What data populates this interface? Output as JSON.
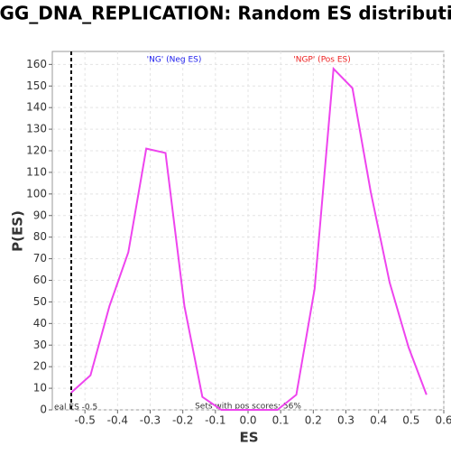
{
  "chart_data": {
    "type": "line",
    "title": "KEGG_DNA_REPLICATION: Random ES distribution",
    "x_label": "ES",
    "y_label": "P(ES)",
    "x": [
      -0.542,
      -0.483,
      -0.425,
      -0.367,
      -0.312,
      -0.253,
      -0.195,
      -0.14,
      -0.082,
      -0.024,
      0.032,
      0.09,
      0.148,
      0.204,
      0.262,
      0.32,
      0.376,
      0.434,
      0.492,
      0.547
    ],
    "values": [
      8,
      16,
      48,
      73,
      121,
      119,
      48,
      6,
      0,
      0,
      0,
      0,
      7,
      56,
      158,
      149,
      101,
      59,
      29,
      7
    ],
    "color": "#ee44ee",
    "xlim": [
      -0.6,
      0.6
    ],
    "xticks": [
      -0.5,
      -0.4,
      -0.3,
      -0.2,
      -0.1,
      {
        "value": 0,
        "label": "0.0"
      },
      0.1,
      0.2,
      0.3,
      0.4,
      0.5,
      0.6
    ],
    "ylim": [
      0,
      166
    ],
    "yticks": [
      0,
      10,
      20,
      30,
      40,
      50,
      60,
      70,
      80,
      90,
      100,
      110,
      120,
      130,
      140,
      150,
      160
    ],
    "grid": true,
    "real_es": -0.542,
    "real_es_label": "eal ES -0.5",
    "annotations": [
      {
        "text": "'NG' (Neg ES)",
        "color": "#2222ee"
      },
      {
        "text": "'NGP' (Pos ES)",
        "color": "#ee2222"
      },
      {
        "text": "Sets with pos scores: 56%",
        "color": "#333333"
      }
    ]
  }
}
